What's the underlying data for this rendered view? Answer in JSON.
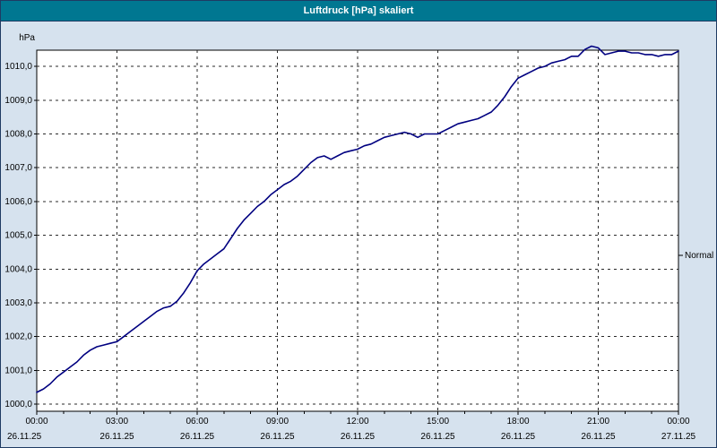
{
  "window": {
    "title": "Luftdruck [hPa] skaliert",
    "titlebar_color": "#007791",
    "background_color": "#d6e2ee"
  },
  "chart_data": {
    "type": "line",
    "title": "Luftdruck [hPa] skaliert",
    "unit_label": "hPa",
    "grid": true,
    "plot_background": "#ffffff",
    "x_axis": {
      "range": [
        0,
        24
      ],
      "ticks": [
        0,
        3,
        6,
        9,
        12,
        15,
        18,
        21,
        24
      ],
      "tick_labels": [
        "00:00",
        "03:00",
        "06:00",
        "09:00",
        "12:00",
        "15:00",
        "18:00",
        "21:00",
        "00:00"
      ],
      "date_labels": [
        "26.11.25",
        "26.11.25",
        "26.11.25",
        "26.11.25",
        "26.11.25",
        "26.11.25",
        "26.11.25",
        "26.11.25",
        "27.11.25"
      ],
      "minor_tick_step_hours": 1
    },
    "y_axis": {
      "range": [
        999.79,
        1010.48
      ],
      "ticks": [
        1000,
        1001,
        1002,
        1003,
        1004,
        1005,
        1006,
        1007,
        1008,
        1009,
        1010
      ],
      "tick_labels": [
        "1000,0",
        "1001,0",
        "1002,0",
        "1003,0",
        "1004,0",
        "1005,0",
        "1006,0",
        "1007,0",
        "1008,0",
        "1009,0",
        "1010,0"
      ]
    },
    "annotations": [
      {
        "label": "Normal",
        "y": 1004.4,
        "position": "right"
      }
    ],
    "series": [
      {
        "name": "Luftdruck",
        "color": "#000080",
        "x": [
          0,
          0.25,
          0.5,
          0.75,
          1,
          1.25,
          1.5,
          1.75,
          2,
          2.25,
          2.5,
          2.75,
          3,
          3.25,
          3.5,
          3.75,
          4,
          4.25,
          4.5,
          4.75,
          5,
          5.25,
          5.5,
          5.75,
          6,
          6.25,
          6.5,
          6.75,
          7,
          7.25,
          7.5,
          7.75,
          8,
          8.25,
          8.5,
          8.75,
          9,
          9.25,
          9.5,
          9.75,
          10,
          10.25,
          10.5,
          10.75,
          11,
          11.25,
          11.5,
          11.75,
          12,
          12.25,
          12.5,
          12.75,
          13,
          13.25,
          13.5,
          13.75,
          14,
          14.25,
          14.5,
          14.75,
          15,
          15.25,
          15.5,
          15.75,
          16,
          16.25,
          16.5,
          16.75,
          17,
          17.25,
          17.5,
          17.75,
          18,
          18.25,
          18.5,
          18.75,
          19,
          19.25,
          19.5,
          19.75,
          20,
          20.25,
          20.5,
          20.75,
          21,
          21.25,
          21.5,
          21.75,
          22,
          22.25,
          22.5,
          22.75,
          23,
          23.25,
          23.5,
          23.75,
          24
        ],
        "values": [
          1000.35,
          1000.45,
          1000.6,
          1000.8,
          1000.95,
          1001.1,
          1001.25,
          1001.45,
          1001.6,
          1001.7,
          1001.75,
          1001.8,
          1001.85,
          1002.0,
          1002.15,
          1002.3,
          1002.45,
          1002.6,
          1002.75,
          1002.85,
          1002.9,
          1003.05,
          1003.3,
          1003.6,
          1003.95,
          1004.15,
          1004.3,
          1004.45,
          1004.6,
          1004.9,
          1005.2,
          1005.45,
          1005.65,
          1005.85,
          1006.0,
          1006.2,
          1006.35,
          1006.5,
          1006.6,
          1006.75,
          1006.95,
          1007.15,
          1007.3,
          1007.35,
          1007.25,
          1007.35,
          1007.45,
          1007.5,
          1007.55,
          1007.65,
          1007.7,
          1007.8,
          1007.9,
          1007.95,
          1008.0,
          1008.05,
          1008.0,
          1007.9,
          1008.0,
          1008.0,
          1008.0,
          1008.1,
          1008.2,
          1008.3,
          1008.35,
          1008.4,
          1008.45,
          1008.55,
          1008.65,
          1008.85,
          1009.1,
          1009.4,
          1009.65,
          1009.75,
          1009.85,
          1009.95,
          1010.0,
          1010.1,
          1010.15,
          1010.2,
          1010.3,
          1010.3,
          1010.5,
          1010.6,
          1010.55,
          1010.35,
          1010.4,
          1010.45,
          1010.45,
          1010.4,
          1010.4,
          1010.35,
          1010.35,
          1010.3,
          1010.35,
          1010.35,
          1010.45
        ]
      }
    ]
  }
}
